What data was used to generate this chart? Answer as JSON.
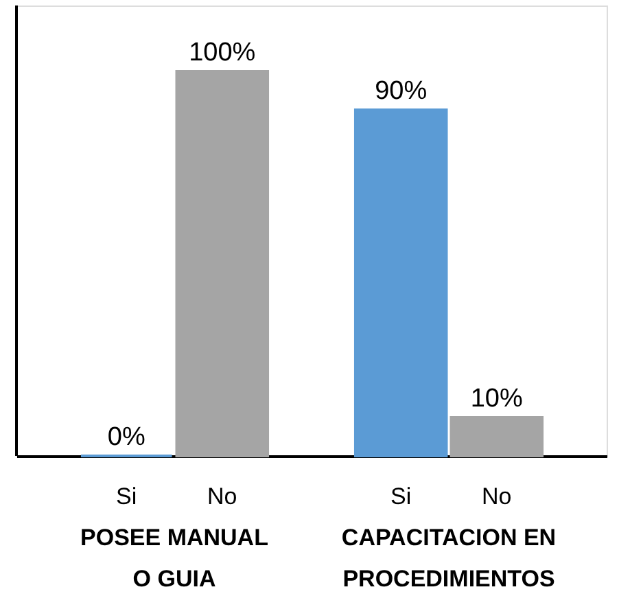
{
  "chart_data": {
    "type": "bar",
    "categories": [
      "POSEE MANUAL O GUIA",
      "CAPACITACION EN PROCEDIMIENTOS"
    ],
    "series": [
      {
        "name": "Si",
        "color": "#5b9bd5",
        "values": [
          0,
          90
        ],
        "value_labels": [
          "0%",
          "90%"
        ]
      },
      {
        "name": "No",
        "color": "#a5a5a5",
        "values": [
          100,
          10
        ],
        "value_labels": [
          "100%",
          "10%"
        ]
      }
    ],
    "legend": false,
    "grid": false
  }
}
